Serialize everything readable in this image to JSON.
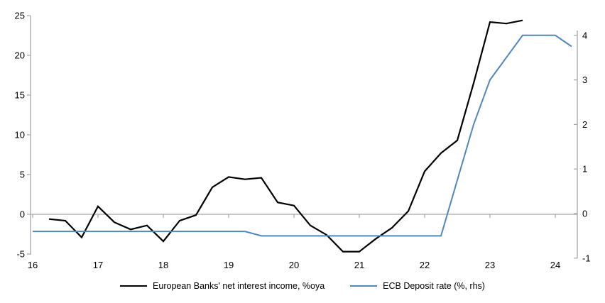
{
  "chart_data": {
    "type": "line",
    "title": "",
    "x_axis": {
      "tick_labels": [
        "16",
        "17",
        "18",
        "19",
        "20",
        "21",
        "22",
        "23",
        "24"
      ],
      "tick_values": [
        16,
        17,
        18,
        19,
        20,
        21,
        22,
        23,
        24
      ],
      "min": 16,
      "max": 24.35
    },
    "left_axis": {
      "ticks": [
        25,
        20,
        15,
        10,
        5,
        0,
        -5
      ],
      "min": -5,
      "max": 25
    },
    "right_axis": {
      "ticks": [
        4,
        3,
        2,
        1,
        0,
        -1
      ],
      "min": -1,
      "max": 4.2
    },
    "grid": "zero-line-only",
    "legend_position": "bottom-center",
    "series": [
      {
        "name": "European Banks' net interest income, %oya",
        "axis": "left",
        "color": "#000000",
        "x": [
          16.25,
          16.5,
          16.75,
          17,
          17.25,
          17.5,
          17.75,
          18,
          18.25,
          18.5,
          18.75,
          19,
          19.25,
          19.5,
          19.75,
          20,
          20.25,
          20.5,
          20.75,
          21,
          21.25,
          21.5,
          21.75,
          22,
          22.25,
          22.5,
          22.75,
          23,
          23.25,
          23.5
        ],
        "values": [
          -0.6,
          -0.8,
          -2.9,
          1.0,
          -1.0,
          -1.9,
          -1.4,
          -3.4,
          -0.8,
          -0.1,
          3.4,
          4.7,
          4.4,
          4.6,
          1.5,
          1.1,
          -1.4,
          -2.6,
          -4.7,
          -4.7,
          -3.1,
          -1.7,
          0.4,
          5.4,
          7.7,
          9.3,
          16.5,
          24.2,
          24.0,
          24.4
        ]
      },
      {
        "name": "ECB Deposit rate (%, rhs)",
        "axis": "right",
        "color": "#5087be",
        "x": [
          16,
          16.25,
          16.5,
          16.75,
          17,
          17.25,
          17.5,
          17.75,
          18,
          18.25,
          18.5,
          18.75,
          19,
          19.25,
          19.5,
          19.75,
          20,
          20.25,
          20.5,
          20.75,
          21,
          21.25,
          21.5,
          21.75,
          22,
          22.25,
          22.5,
          22.75,
          23,
          23.25,
          23.5,
          23.75,
          24,
          24.25
        ],
        "values": [
          -0.4,
          -0.4,
          -0.4,
          -0.4,
          -0.4,
          -0.4,
          -0.4,
          -0.4,
          -0.4,
          -0.4,
          -0.4,
          -0.4,
          -0.4,
          -0.4,
          -0.5,
          -0.5,
          -0.5,
          -0.5,
          -0.5,
          -0.5,
          -0.5,
          -0.5,
          -0.5,
          -0.5,
          -0.5,
          -0.5,
          0.75,
          2.0,
          3.0,
          3.5,
          4.0,
          4.0,
          4.0,
          3.75
        ]
      }
    ]
  },
  "legend": {
    "items": [
      {
        "label": "European Banks' net interest income, %oya",
        "color": "#000000"
      },
      {
        "label": "ECB Deposit rate (%, rhs)",
        "color": "#5087be"
      }
    ]
  },
  "colors": {
    "axis": "#a6a6a6",
    "background": "#ffffff",
    "text": "#000000"
  }
}
